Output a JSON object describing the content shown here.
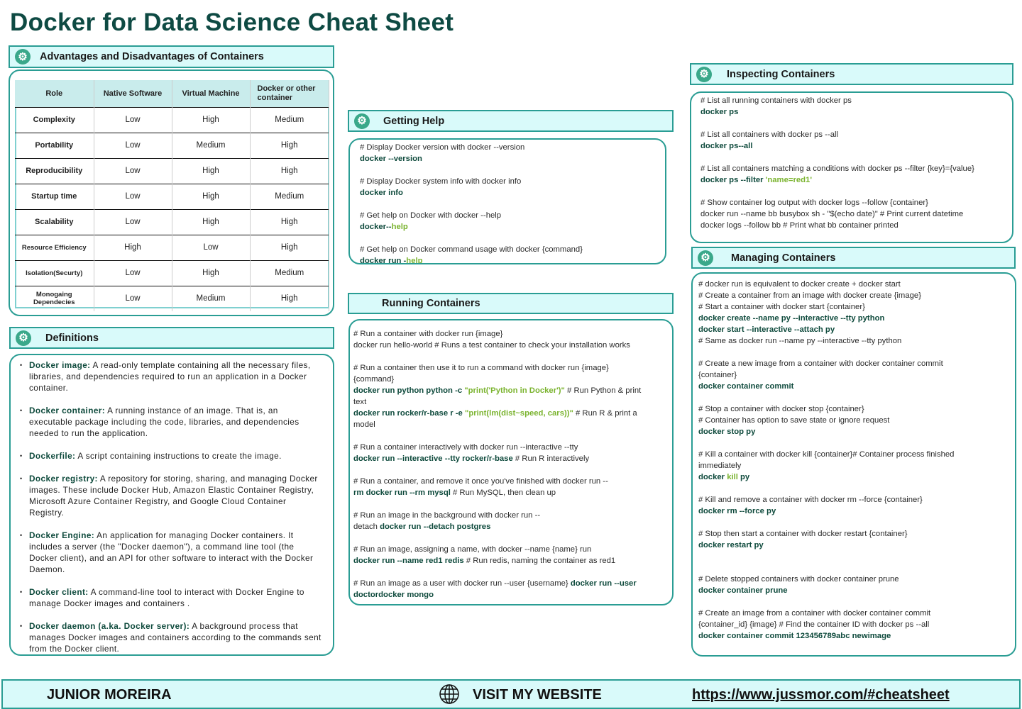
{
  "title": "Docker for Data Science Cheat Sheet",
  "advantages": {
    "heading": "Advantages and Disadvantages of Containers",
    "headers": [
      "Role",
      "Native Software",
      "Virtual Machine",
      "Docker or other container"
    ],
    "rows": [
      [
        "Complexity",
        "Low",
        "High",
        "Medium"
      ],
      [
        "Portability",
        "Low",
        "Medium",
        "High"
      ],
      [
        "Reproducibility",
        "Low",
        "High",
        "High"
      ],
      [
        "Startup time",
        "Low",
        "High",
        "Medium"
      ],
      [
        "Scalability",
        "Low",
        "High",
        "High"
      ],
      [
        "Resource Efficiency",
        "High",
        "Low",
        "High"
      ],
      [
        "Isolation(Securty)",
        "Low",
        "High",
        "Medium"
      ],
      [
        "Monogaing Dependecies",
        "Low",
        "Medium",
        "High"
      ]
    ]
  },
  "definitions": {
    "heading": "Definitions",
    "items": [
      {
        "term": "Docker image:",
        "text": " A read-only template containing all the necessary files, libraries, and dependencies required to run an application in a Docker container."
      },
      {
        "term": "Docker container:",
        "text": " A running instance of an image. That is, an executable package including the code, libraries, and dependencies needed to run the application."
      },
      {
        "term": "Dockerfile:",
        "text": " A script containing instructions to create the image."
      },
      {
        "term": "Docker registry:",
        "text": " A repository for storing, sharing, and managing Docker images.  These include Docker Hub, Amazon Elastic Container Registry, Microsoft Azure Container Registry, and Google Cloud Container Registry."
      },
      {
        "term": "Docker Engine:",
        "text": " An application for managing Docker containers. It includes a server (the \"Docker daemon\"),  a command line tool (the Docker client), and an API for other software to interact with the Docker Daemon."
      },
      {
        "term": "Docker client:",
        "text": " A command-line tool to interact with Docker Engine to manage Docker images and containers ."
      },
      {
        "term": "Docker daemon (a.ka. Docker server):",
        "text": " A background process that manages Docker images and containers according to the commands sent from the Docker client."
      }
    ]
  },
  "help": {
    "heading": "Getting Help",
    "lines": [
      [
        [
          "c",
          "# Display Docker version with docker --version"
        ]
      ],
      [
        [
          "k",
          " docker --version"
        ]
      ],
      [],
      [
        [
          "c",
          "# Display Docker system info with docker info"
        ]
      ],
      [
        [
          "k",
          "docker info"
        ]
      ],
      [],
      [
        [
          "c",
          "# Get help on Docker with docker --help"
        ]
      ],
      [
        [
          "k",
          "docker--"
        ],
        [
          "g",
          "help"
        ]
      ],
      [],
      [
        [
          "c",
          "# Get help on Docker command usage with docker {command}"
        ]
      ],
      [
        [
          "k",
          "docker run -"
        ],
        [
          "g",
          "help"
        ]
      ]
    ]
  },
  "running": {
    "heading": "Running Containers",
    "lines": [
      [
        [
          "c",
          "# Run a container with docker run {image}"
        ]
      ],
      [
        [
          "c",
          "docker run hello-world  # Runs a test container to check your installation works"
        ]
      ],
      [],
      [
        [
          "c",
          "# Run a container then use it to run a command with docker run {image}"
        ]
      ],
      [
        [
          "c",
          "{command}"
        ]
      ],
      [
        [
          "k",
          "docker run python python -c "
        ],
        [
          "g",
          "\"print('Python in Docker')\""
        ],
        [
          "c",
          " # Run Python & print"
        ]
      ],
      [
        [
          "c",
          "text"
        ]
      ],
      [
        [
          "k",
          "docker run rocker/r-base r -e "
        ],
        [
          "g",
          "\"print(lm(dist~speed, cars))\""
        ],
        [
          "c",
          " # Run R & print a"
        ]
      ],
      [
        [
          "c",
          "model"
        ]
      ],
      [],
      [
        [
          "c",
          "# Run a container interactively with docker run --interactive --tty"
        ]
      ],
      [
        [
          "k",
          "docker run --interactive --tty rocker/r-base "
        ],
        [
          "c",
          " # Run R interactively"
        ]
      ],
      [],
      [
        [
          "c",
          "# Run a container, and remove it once you've finished with docker run --"
        ]
      ],
      [
        [
          "k",
          "rm docker run --rm mysql"
        ],
        [
          "c",
          "  # Run MySQL, then clean up"
        ]
      ],
      [],
      [
        [
          "c",
          "# Run an image in the background with docker run --"
        ]
      ],
      [
        [
          "c",
          "detach "
        ],
        [
          "k",
          "docker run --detach postgres"
        ]
      ],
      [],
      [
        [
          "c",
          "# Run an image, assigning a name, with docker --name {name} run"
        ]
      ],
      [
        [
          "k",
          "docker run --name red1 redis"
        ],
        [
          "c",
          " # Run redis, naming the container as red1"
        ]
      ],
      [],
      [
        [
          "c",
          "# Run an image as a user with docker run --user {username} "
        ],
        [
          "k",
          "docker run --user"
        ]
      ],
      [
        [
          "k",
          "doctordocker mongo"
        ]
      ]
    ]
  },
  "inspecting": {
    "heading": "Inspecting Containers",
    "lines": [
      [
        [
          "c",
          "# List all running containers with docker ps"
        ]
      ],
      [
        [
          "k",
          "docker ps"
        ]
      ],
      [],
      [
        [
          "c",
          "# List all containers with docker ps --all"
        ]
      ],
      [
        [
          "k",
          "docker ps--all"
        ]
      ],
      [],
      [
        [
          "c",
          "# List all containers matching a conditions with docker ps --filter {key}={value}"
        ]
      ],
      [
        [
          "k",
          "docker ps --filter "
        ],
        [
          "g",
          "'name=red1'"
        ]
      ],
      [],
      [
        [
          "c",
          "# Show container log output with docker logs --follow {container}"
        ]
      ],
      [
        [
          "c",
          "docker run --name bb busybox sh - \"$(echo date)\" # Print current datetime"
        ]
      ],
      [
        [
          "c",
          "docker logs --follow bb # Print what bb container printed"
        ]
      ]
    ]
  },
  "managing": {
    "heading": "Managing Containers",
    "lines": [
      [
        [
          "c",
          "# docker run is equivalent to docker create + docker start"
        ]
      ],
      [
        [
          "c",
          "# Create a container from an image with docker create {image}"
        ]
      ],
      [
        [
          "c",
          "# Start a container with docker start {container}"
        ]
      ],
      [
        [
          "k",
          "docker create --name py --interactive --tty python"
        ]
      ],
      [
        [
          "k",
          "docker start --interactive --attach py"
        ]
      ],
      [
        [
          "c",
          "# Same as docker run --name py --interactive --tty python"
        ]
      ],
      [],
      [
        [
          "c",
          "# Create a new image from a container with docker container commit"
        ]
      ],
      [
        [
          "c",
          "{container}"
        ]
      ],
      [
        [
          "k",
          "docker container commit"
        ]
      ],
      [],
      [
        [
          "c",
          "# Stop a container with docker stop {container}"
        ]
      ],
      [
        [
          "c",
          "# Container has option to save state or ignore request"
        ]
      ],
      [
        [
          "k",
          "docker stop py"
        ]
      ],
      [],
      [
        [
          "c",
          "# Kill a container with docker kill {container}# Container process finished"
        ]
      ],
      [
        [
          "c",
          "immediately"
        ]
      ],
      [
        [
          "k",
          "docker "
        ],
        [
          "g",
          "kill"
        ],
        [
          "k",
          "  py"
        ]
      ],
      [],
      [
        [
          "c",
          "# Kill and remove a container with docker rm --force {container}"
        ]
      ],
      [
        [
          "k",
          "docker rm --force py"
        ]
      ],
      [],
      [
        [
          "c",
          "# Stop then start a container with docker restart {container}"
        ]
      ],
      [
        [
          "k",
          "docker restart py"
        ]
      ],
      [],
      [],
      [
        [
          "c",
          "# Delete stopped containers with docker container prune"
        ]
      ],
      [
        [
          "k",
          "docker container prune"
        ]
      ],
      [],
      [
        [
          "c",
          "# Create an image from a container with docker container commit"
        ]
      ],
      [
        [
          "c",
          "{container_id} {image} # Find the container ID with docker ps --all"
        ]
      ],
      [
        [
          "k",
          "docker container commit 123456789abc newimage"
        ]
      ]
    ]
  },
  "footer": {
    "author": "JUNIOR MOREIRA",
    "visit_label": "VISIT MY WEBSITE",
    "url": "https://www.jussmor.com/#cheatsheet"
  },
  "colors": {
    "accent": "#2a9d94",
    "header_fill": "#d9fafa",
    "command": "#0e4a3c",
    "string": "#7ab32e"
  },
  "icons": {
    "section": "gear-icon",
    "footer": "globe-icon"
  }
}
